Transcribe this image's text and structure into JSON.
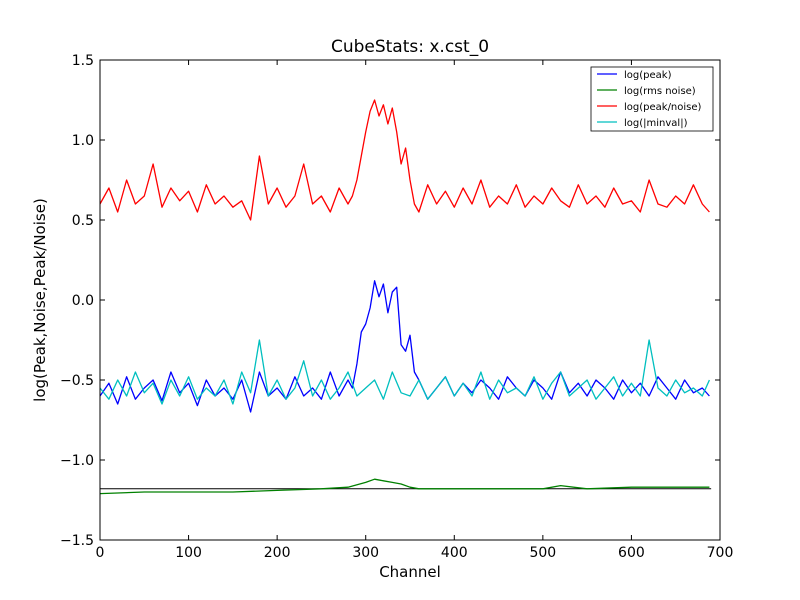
{
  "chart_data": {
    "type": "line",
    "title": "CubeStats: x.cst_0",
    "xlabel": "Channel",
    "ylabel": "log(Peak,Noise,Peak/Noise)",
    "xlim": [
      0,
      700
    ],
    "ylim": [
      -1.5,
      1.5
    ],
    "xticks": [
      "0",
      "100",
      "200",
      "300",
      "400",
      "500",
      "600",
      "700"
    ],
    "yticks": [
      "−1.5",
      "−1.0",
      "−0.5",
      "0.0",
      "0.5",
      "1.0",
      "1.5"
    ],
    "grid": false,
    "legend_position": "top-right",
    "reference_line": {
      "y": -1.18,
      "color": "#000000",
      "x_range": [
        0,
        690
      ]
    },
    "series": [
      {
        "name": "log(peak)",
        "color": "#0000ff",
        "x": [
          0,
          10,
          20,
          30,
          40,
          50,
          60,
          70,
          80,
          90,
          100,
          110,
          120,
          130,
          140,
          150,
          160,
          170,
          180,
          190,
          200,
          210,
          220,
          230,
          240,
          250,
          260,
          270,
          280,
          285,
          290,
          295,
          300,
          305,
          310,
          315,
          320,
          325,
          330,
          335,
          340,
          345,
          350,
          355,
          360,
          370,
          380,
          390,
          400,
          410,
          420,
          430,
          440,
          450,
          460,
          470,
          480,
          490,
          500,
          510,
          520,
          530,
          540,
          550,
          560,
          570,
          580,
          590,
          600,
          610,
          620,
          630,
          640,
          650,
          660,
          670,
          680,
          688
        ],
        "y": [
          -0.6,
          -0.52,
          -0.65,
          -0.48,
          -0.62,
          -0.55,
          -0.5,
          -0.63,
          -0.45,
          -0.58,
          -0.52,
          -0.66,
          -0.5,
          -0.6,
          -0.55,
          -0.62,
          -0.5,
          -0.7,
          -0.45,
          -0.6,
          -0.55,
          -0.62,
          -0.48,
          -0.6,
          -0.55,
          -0.62,
          -0.45,
          -0.6,
          -0.5,
          -0.55,
          -0.4,
          -0.2,
          -0.15,
          -0.05,
          0.12,
          0.02,
          0.1,
          -0.08,
          0.05,
          0.08,
          -0.28,
          -0.32,
          -0.22,
          -0.45,
          -0.5,
          -0.62,
          -0.55,
          -0.48,
          -0.6,
          -0.52,
          -0.58,
          -0.5,
          -0.55,
          -0.62,
          -0.48,
          -0.55,
          -0.6,
          -0.5,
          -0.55,
          -0.62,
          -0.45,
          -0.58,
          -0.52,
          -0.6,
          -0.5,
          -0.55,
          -0.62,
          -0.5,
          -0.58,
          -0.52,
          -0.6,
          -0.48,
          -0.55,
          -0.62,
          -0.5,
          -0.58,
          -0.55,
          -0.6
        ]
      },
      {
        "name": "log(rms noise)",
        "color": "#008000",
        "x": [
          0,
          50,
          100,
          150,
          200,
          250,
          280,
          300,
          310,
          320,
          330,
          340,
          350,
          360,
          400,
          450,
          500,
          520,
          550,
          600,
          650,
          688
        ],
        "y": [
          -1.21,
          -1.2,
          -1.2,
          -1.2,
          -1.19,
          -1.18,
          -1.17,
          -1.14,
          -1.12,
          -1.13,
          -1.14,
          -1.15,
          -1.17,
          -1.18,
          -1.18,
          -1.18,
          -1.18,
          -1.16,
          -1.18,
          -1.17,
          -1.17,
          -1.17
        ]
      },
      {
        "name": "log(peak/noise)",
        "color": "#ff0000",
        "x": [
          0,
          10,
          20,
          30,
          40,
          50,
          60,
          70,
          80,
          90,
          100,
          110,
          120,
          130,
          140,
          150,
          160,
          170,
          180,
          190,
          200,
          210,
          220,
          230,
          240,
          250,
          260,
          270,
          280,
          285,
          290,
          295,
          300,
          305,
          310,
          315,
          320,
          325,
          330,
          335,
          340,
          345,
          350,
          355,
          360,
          370,
          380,
          390,
          400,
          410,
          420,
          430,
          440,
          450,
          460,
          470,
          480,
          490,
          500,
          510,
          520,
          530,
          540,
          550,
          560,
          570,
          580,
          590,
          600,
          610,
          620,
          630,
          640,
          650,
          660,
          670,
          680,
          688
        ],
        "y": [
          0.6,
          0.7,
          0.55,
          0.75,
          0.6,
          0.65,
          0.85,
          0.58,
          0.7,
          0.62,
          0.68,
          0.55,
          0.72,
          0.6,
          0.65,
          0.58,
          0.62,
          0.5,
          0.9,
          0.6,
          0.7,
          0.58,
          0.65,
          0.85,
          0.6,
          0.65,
          0.55,
          0.7,
          0.6,
          0.65,
          0.75,
          0.9,
          1.05,
          1.18,
          1.25,
          1.15,
          1.22,
          1.1,
          1.2,
          1.05,
          0.85,
          0.95,
          0.75,
          0.6,
          0.55,
          0.72,
          0.6,
          0.68,
          0.58,
          0.7,
          0.6,
          0.75,
          0.58,
          0.65,
          0.6,
          0.72,
          0.58,
          0.65,
          0.6,
          0.7,
          0.62,
          0.58,
          0.72,
          0.6,
          0.65,
          0.58,
          0.7,
          0.6,
          0.62,
          0.55,
          0.75,
          0.6,
          0.58,
          0.65,
          0.6,
          0.72,
          0.6,
          0.55
        ]
      },
      {
        "name": "log(|minval|)",
        "color": "#00bfbf",
        "x": [
          0,
          10,
          20,
          30,
          40,
          50,
          60,
          70,
          80,
          90,
          100,
          110,
          120,
          130,
          140,
          150,
          160,
          170,
          180,
          190,
          200,
          210,
          220,
          230,
          240,
          250,
          260,
          270,
          280,
          290,
          300,
          310,
          320,
          330,
          340,
          350,
          360,
          370,
          380,
          390,
          400,
          410,
          420,
          430,
          440,
          450,
          460,
          470,
          480,
          490,
          500,
          510,
          520,
          530,
          540,
          550,
          560,
          570,
          580,
          590,
          600,
          610,
          620,
          630,
          640,
          650,
          660,
          670,
          680,
          688
        ],
        "y": [
          -0.55,
          -0.62,
          -0.5,
          -0.6,
          -0.45,
          -0.58,
          -0.52,
          -0.65,
          -0.5,
          -0.6,
          -0.48,
          -0.62,
          -0.55,
          -0.6,
          -0.5,
          -0.65,
          -0.45,
          -0.58,
          -0.25,
          -0.6,
          -0.5,
          -0.62,
          -0.55,
          -0.38,
          -0.6,
          -0.5,
          -0.62,
          -0.55,
          -0.45,
          -0.6,
          -0.55,
          -0.5,
          -0.62,
          -0.45,
          -0.58,
          -0.6,
          -0.5,
          -0.62,
          -0.55,
          -0.48,
          -0.6,
          -0.52,
          -0.6,
          -0.45,
          -0.62,
          -0.5,
          -0.58,
          -0.55,
          -0.6,
          -0.48,
          -0.62,
          -0.52,
          -0.45,
          -0.6,
          -0.55,
          -0.5,
          -0.62,
          -0.55,
          -0.48,
          -0.6,
          -0.52,
          -0.6,
          -0.25,
          -0.55,
          -0.6,
          -0.5,
          -0.58,
          -0.55,
          -0.6,
          -0.5
        ]
      }
    ]
  }
}
